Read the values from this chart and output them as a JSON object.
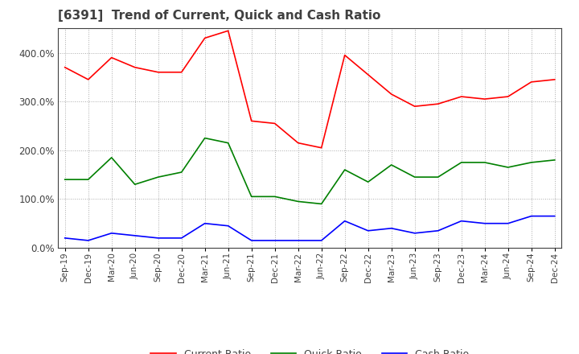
{
  "title": "[6391]  Trend of Current, Quick and Cash Ratio",
  "x_labels": [
    "Sep-19",
    "Dec-19",
    "Mar-20",
    "Jun-20",
    "Sep-20",
    "Dec-20",
    "Mar-21",
    "Jun-21",
    "Sep-21",
    "Dec-21",
    "Mar-22",
    "Jun-22",
    "Sep-22",
    "Dec-22",
    "Mar-23",
    "Jun-23",
    "Sep-23",
    "Dec-23",
    "Mar-24",
    "Jun-24",
    "Sep-24",
    "Dec-24"
  ],
  "current_ratio": [
    370,
    345,
    390,
    370,
    360,
    360,
    430,
    445,
    260,
    255,
    215,
    205,
    395,
    355,
    315,
    290,
    295,
    310,
    305,
    310,
    340,
    345
  ],
  "quick_ratio": [
    140,
    140,
    185,
    130,
    145,
    155,
    225,
    215,
    105,
    105,
    95,
    90,
    160,
    135,
    170,
    145,
    145,
    175,
    175,
    165,
    175,
    180
  ],
  "cash_ratio": [
    20,
    15,
    30,
    25,
    20,
    20,
    50,
    45,
    15,
    15,
    15,
    15,
    55,
    35,
    40,
    30,
    35,
    55,
    50,
    50,
    65,
    65
  ],
  "ylim": [
    0,
    450
  ],
  "yticks": [
    0,
    100,
    200,
    300,
    400
  ],
  "ytick_labels": [
    "0.0%",
    "100.0%",
    "200.0%",
    "300.0%",
    "400.0%"
  ],
  "current_color": "#ff0000",
  "quick_color": "#008000",
  "cash_color": "#0000ff",
  "bg_color": "#ffffff",
  "grid_color": "#aaaaaa",
  "title_color": "#404040",
  "title_fontsize": 11
}
